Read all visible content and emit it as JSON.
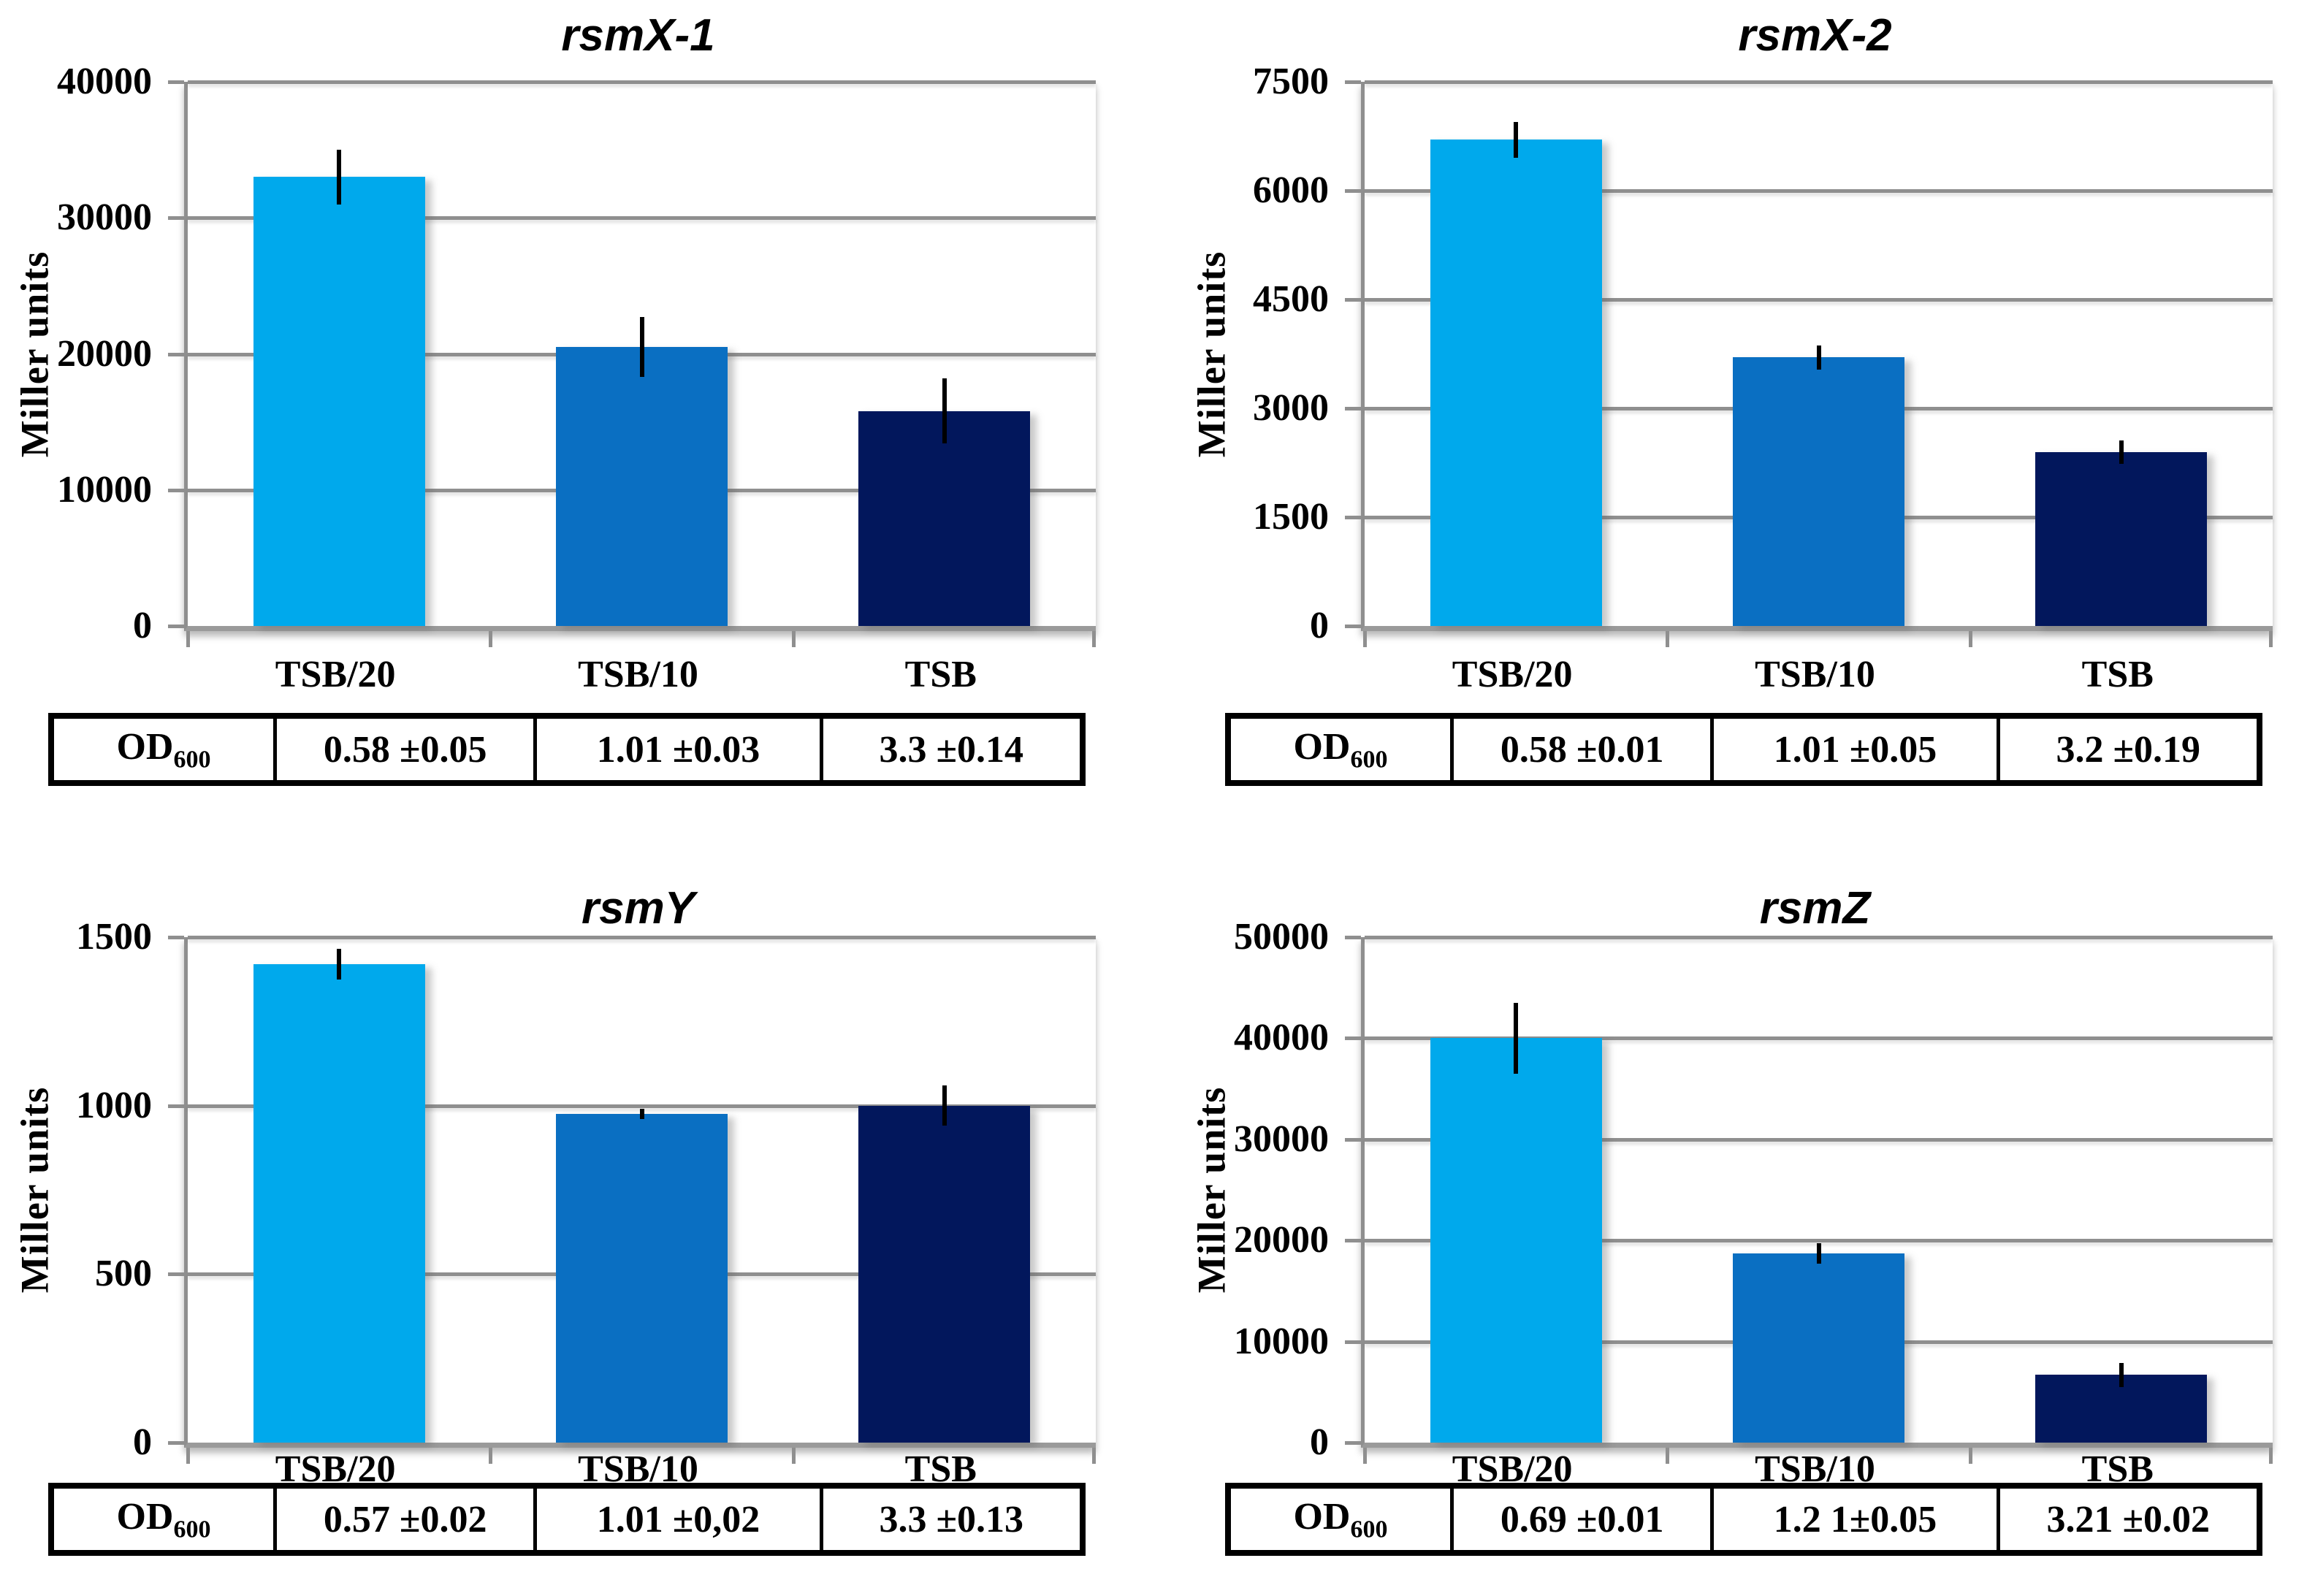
{
  "page": {
    "background": "#ffffff",
    "description_visible_text_only": true
  },
  "styles": {
    "bar_colors": [
      "#00A9EC",
      "#0A6FC2",
      "#02175C"
    ],
    "gridline_color": "#8f8f8f",
    "axis_color": "#9a9a9a",
    "error_bar_color": "#000000",
    "text_color": "#000000"
  },
  "chart_data": [
    {
      "type": "bar",
      "title": "rsmX-1",
      "ylabel": "Miller units",
      "categories": [
        "TSB/20",
        "TSB/10",
        "TSB"
      ],
      "values": [
        33000,
        20500,
        15800
      ],
      "errors": [
        2000,
        2200,
        2400
      ],
      "ylim": [
        0,
        40000
      ],
      "yticks": [
        0,
        10000,
        20000,
        30000,
        40000
      ],
      "grid": true,
      "legend": "none",
      "od_row": {
        "header": "OD",
        "header_sub": "600",
        "cells": [
          "0.58 ±0.05",
          "1.01 ±0.03",
          "3.3 ±0.14"
        ]
      }
    },
    {
      "type": "bar",
      "title": "rsmX-2",
      "ylabel": "Miller units",
      "categories": [
        "TSB/20",
        "TSB/10",
        "TSB"
      ],
      "values": [
        6700,
        3700,
        2400
      ],
      "errors": [
        250,
        170,
        160
      ],
      "ylim": [
        0,
        7500
      ],
      "yticks": [
        0,
        1500,
        3000,
        4500,
        6000,
        7500
      ],
      "grid": true,
      "legend": "none",
      "od_row": {
        "header": "OD",
        "header_sub": "600",
        "cells": [
          "0.58 ±0.01",
          "1.01 ±0.05",
          "3.2 ±0.19"
        ]
      }
    },
    {
      "type": "bar",
      "title": "rsmY",
      "ylabel": "Miller units",
      "categories": [
        "TSB/20",
        "TSB/10",
        "TSB"
      ],
      "values": [
        1420,
        975,
        1000
      ],
      "errors": [
        45,
        15,
        60
      ],
      "ylim": [
        0,
        1500
      ],
      "yticks": [
        0,
        500,
        1000,
        1500
      ],
      "grid": true,
      "legend": "none",
      "od_row": {
        "header": "OD",
        "header_sub": "600",
        "cells": [
          "0.57 ±0.02",
          "1.01 ±0,02",
          "3.3 ±0.13"
        ]
      }
    },
    {
      "type": "bar",
      "title": "rsmZ",
      "ylabel": "Miller units",
      "categories": [
        "TSB/20",
        "TSB/10",
        "TSB"
      ],
      "values": [
        40000,
        18700,
        6700
      ],
      "errors": [
        3500,
        1000,
        1200
      ],
      "ylim": [
        0,
        50000
      ],
      "yticks": [
        0,
        10000,
        20000,
        30000,
        40000,
        50000
      ],
      "grid": true,
      "legend": "none",
      "od_row": {
        "header": "OD",
        "header_sub": "600",
        "cells": [
          "0.69 ±0.01",
          "1.2 1±0.05",
          "3.21 ±0.02"
        ]
      }
    }
  ]
}
